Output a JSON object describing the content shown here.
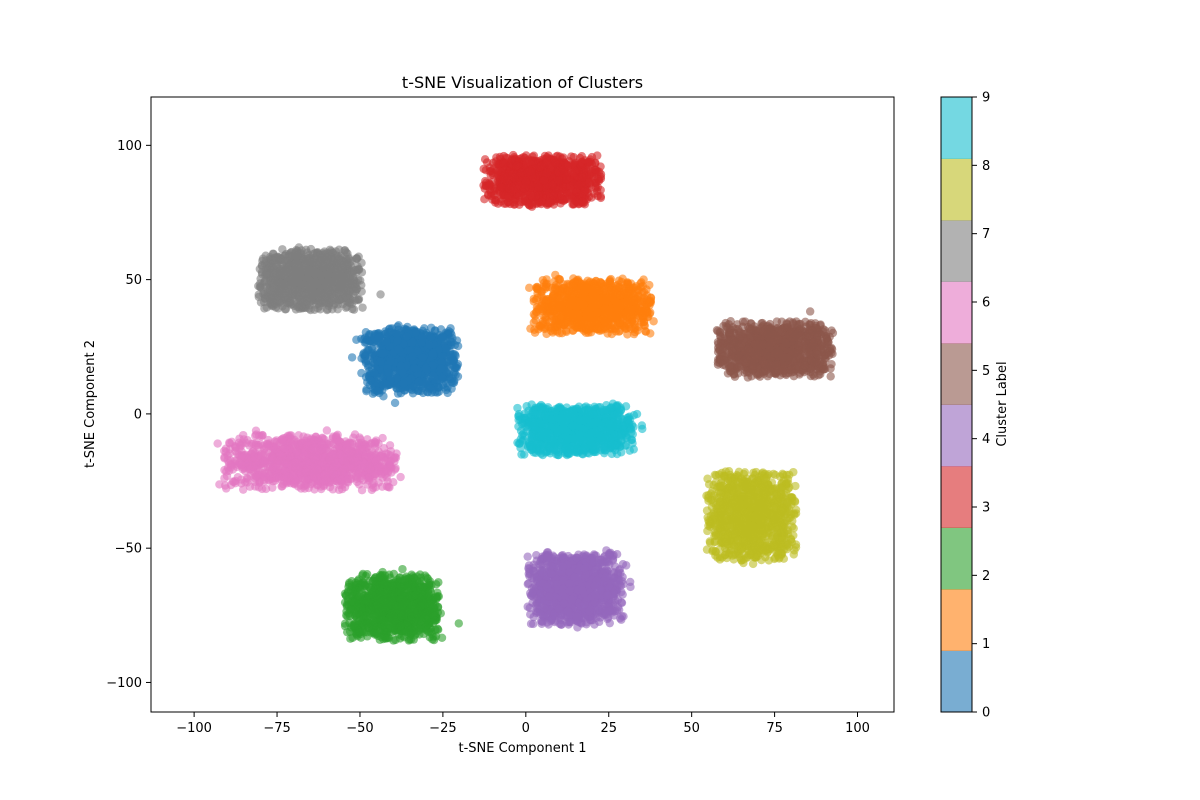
{
  "chart_data": {
    "type": "scatter",
    "title": "t-SNE Visualization of Clusters",
    "xlabel": "t-SNE Component 1",
    "ylabel": "t-SNE Component 2",
    "xlim": [
      -113,
      111
    ],
    "ylim": [
      -111,
      118
    ],
    "xticks": [
      -100,
      -75,
      -50,
      -25,
      0,
      25,
      50,
      75,
      100
    ],
    "yticks": [
      -100,
      -50,
      0,
      50,
      100
    ],
    "xtick_labels": [
      "−100",
      "−75",
      "−50",
      "−25",
      "0",
      "25",
      "50",
      "75",
      "100"
    ],
    "ytick_labels": [
      "−100",
      "−50",
      "0",
      "50",
      "100"
    ],
    "grid": false,
    "marker_alpha": 0.6,
    "colorbar": {
      "label": "Cluster Label",
      "range": [
        0,
        9
      ],
      "ticks": [
        0,
        1,
        2,
        3,
        4,
        5,
        6,
        7,
        8,
        9
      ],
      "tick_labels": [
        "0",
        "1",
        "2",
        "3",
        "4",
        "5",
        "6",
        "7",
        "8",
        "9"
      ],
      "colors": [
        "#1f77b4",
        "#ff7f0e",
        "#2ca02c",
        "#d62728",
        "#9467bd",
        "#8c564b",
        "#e377c2",
        "#7f7f7f",
        "#bcbd22",
        "#17becf"
      ]
    },
    "clusters": [
      {
        "label": 0,
        "color": "#1f77b4",
        "center": [
          -35,
          20
        ],
        "spread": [
          14,
          12
        ]
      },
      {
        "label": 1,
        "color": "#ff7f0e",
        "center": [
          20,
          40
        ],
        "spread": [
          17,
          10
        ]
      },
      {
        "label": 2,
        "color": "#2ca02c",
        "center": [
          -40,
          -72
        ],
        "spread": [
          14,
          12
        ]
      },
      {
        "label": 3,
        "color": "#d62728",
        "center": [
          5,
          87
        ],
        "spread": [
          17,
          9
        ]
      },
      {
        "label": 4,
        "color": "#9467bd",
        "center": [
          15,
          -65
        ],
        "spread": [
          14,
          13
        ]
      },
      {
        "label": 5,
        "color": "#8c564b",
        "center": [
          75,
          24
        ],
        "spread": [
          17,
          10
        ]
      },
      {
        "label": 6,
        "color": "#e377c2",
        "center": [
          -65,
          -18
        ],
        "spread": [
          25,
          10
        ]
      },
      {
        "label": 7,
        "color": "#7f7f7f",
        "center": [
          -65,
          50
        ],
        "spread": [
          15,
          11
        ]
      },
      {
        "label": 8,
        "color": "#bcbd22",
        "center": [
          68,
          -38
        ],
        "spread": [
          13,
          16
        ]
      },
      {
        "label": 9,
        "color": "#17becf",
        "center": [
          15,
          -6
        ],
        "spread": [
          17,
          9
        ]
      }
    ]
  }
}
